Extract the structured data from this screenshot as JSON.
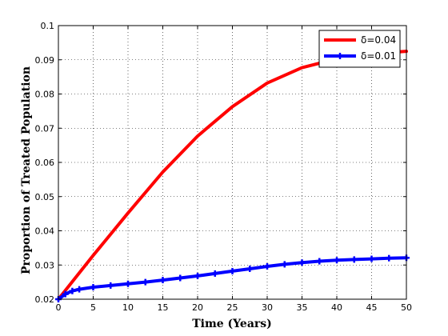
{
  "chart_data": {
    "type": "line",
    "title": "",
    "xlabel": "Time (Years)",
    "ylabel": "Proportion of Treated Population",
    "xlim": [
      0,
      50
    ],
    "ylim": [
      0.02,
      0.1
    ],
    "xticks": [
      "0",
      "5",
      "10",
      "15",
      "20",
      "25",
      "30",
      "35",
      "40",
      "45",
      "50"
    ],
    "yticks": [
      "0.02",
      "0.03",
      "0.04",
      "0.05",
      "0.06",
      "0.07",
      "0.08",
      "0.09",
      "0.1"
    ],
    "grid": true,
    "legend_position": "top-right",
    "series": [
      {
        "name": "δ=0.04",
        "color": "#ff0000",
        "marker": "none",
        "x": [
          0,
          5,
          10,
          15,
          20,
          25,
          30,
          35,
          40,
          45,
          50
        ],
        "y": [
          0.02,
          0.0328,
          0.0452,
          0.0572,
          0.0677,
          0.0763,
          0.0832,
          0.0877,
          0.0903,
          0.0918,
          0.0925
        ]
      },
      {
        "name": "δ=0.01",
        "color": "#0000ff",
        "marker": "plus",
        "x": [
          0,
          1,
          2,
          3,
          5,
          7.5,
          10,
          12.5,
          15,
          17.5,
          20,
          22.5,
          25,
          27.5,
          30,
          32.5,
          35,
          37.5,
          40,
          42.5,
          45,
          47.5,
          50
        ],
        "y": [
          0.02,
          0.0215,
          0.0224,
          0.0229,
          0.0235,
          0.024,
          0.0245,
          0.025,
          0.0256,
          0.0262,
          0.0268,
          0.0275,
          0.0282,
          0.0289,
          0.0296,
          0.0302,
          0.0307,
          0.0311,
          0.0314,
          0.0316,
          0.0318,
          0.032,
          0.0321
        ]
      }
    ]
  }
}
